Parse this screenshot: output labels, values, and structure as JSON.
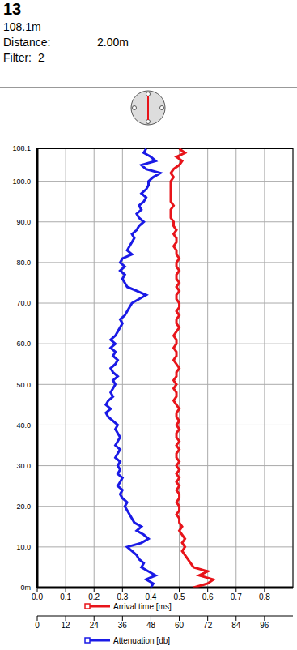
{
  "header": {
    "title": "13",
    "depth": "108.1m",
    "distance_label": "Distance:",
    "distance": "2.00m",
    "filter_label": "Filter:",
    "filter": "2"
  },
  "chart_data": {
    "type": "line",
    "grid": true,
    "depth": [
      0,
      1,
      2,
      3,
      4,
      5,
      6,
      7,
      8,
      9,
      10,
      11,
      12,
      13,
      14,
      15,
      16,
      17,
      18,
      19,
      20,
      21,
      22,
      23,
      24,
      25,
      26,
      27,
      28,
      29,
      30,
      31,
      32,
      33,
      34,
      35,
      36,
      37,
      38,
      39,
      40,
      41,
      42,
      43,
      44,
      45,
      46,
      47,
      48,
      49,
      50,
      51,
      52,
      53,
      54,
      55,
      56,
      57,
      58,
      59,
      60,
      61,
      62,
      63,
      64,
      65,
      66,
      67,
      68,
      69,
      70,
      71,
      72,
      73,
      74,
      75,
      76,
      77,
      78,
      79,
      80,
      81,
      82,
      83,
      84,
      85,
      86,
      87,
      88,
      89,
      90,
      91,
      92,
      93,
      94,
      95,
      96,
      97,
      98,
      99,
      100,
      101,
      102,
      103,
      104,
      105,
      106,
      107,
      108
    ],
    "ylim": [
      0,
      108.1
    ],
    "yticks": [
      {
        "value": 0,
        "label": "0m"
      },
      {
        "value": 10,
        "label": "10.0"
      },
      {
        "value": 20,
        "label": "20.0"
      },
      {
        "value": 30,
        "label": "30.0"
      },
      {
        "value": 40,
        "label": "40.0"
      },
      {
        "value": 50,
        "label": "50.0"
      },
      {
        "value": 60,
        "label": "60.0"
      },
      {
        "value": 70,
        "label": "70.0"
      },
      {
        "value": 80,
        "label": "80.0"
      },
      {
        "value": 90,
        "label": "90.0"
      },
      {
        "value": 100,
        "label": "100.0"
      },
      {
        "value": 108.1,
        "label": "108.1"
      }
    ],
    "xlim": [
      0,
      0.9
    ],
    "xticks": [
      {
        "value": 0,
        "label": "0.0"
      },
      0.1,
      0.2,
      0.3,
      0.4,
      0.5,
      0.6,
      0.7,
      0.8
    ],
    "x2lim": [
      0,
      108
    ],
    "x2ticks": [
      0,
      12,
      24,
      36,
      48,
      60,
      72,
      84,
      96
    ],
    "series": [
      {
        "name": "Arrival time [ms]",
        "color": "#e8141a",
        "axis": "x",
        "values": [
          0.55,
          0.6,
          0.62,
          0.57,
          0.6,
          0.55,
          0.54,
          0.53,
          0.52,
          0.51,
          0.52,
          0.51,
          0.52,
          0.51,
          0.5,
          0.51,
          0.5,
          0.5,
          0.49,
          0.5,
          0.5,
          0.49,
          0.5,
          0.5,
          0.49,
          0.5,
          0.49,
          0.5,
          0.49,
          0.5,
          0.49,
          0.5,
          0.49,
          0.49,
          0.5,
          0.49,
          0.5,
          0.49,
          0.49,
          0.5,
          0.49,
          0.5,
          0.49,
          0.49,
          0.5,
          0.49,
          0.48,
          0.49,
          0.49,
          0.48,
          0.49,
          0.48,
          0.49,
          0.49,
          0.5,
          0.49,
          0.48,
          0.49,
          0.49,
          0.48,
          0.49,
          0.49,
          0.48,
          0.49,
          0.5,
          0.49,
          0.49,
          0.5,
          0.49,
          0.5,
          0.5,
          0.49,
          0.49,
          0.5,
          0.49,
          0.5,
          0.49,
          0.49,
          0.5,
          0.49,
          0.49,
          0.5,
          0.49,
          0.49,
          0.48,
          0.49,
          0.49,
          0.48,
          0.49,
          0.48,
          0.48,
          0.47,
          0.47,
          0.47,
          0.48,
          0.47,
          0.47,
          0.47,
          0.47,
          0.47,
          0.47,
          0.48,
          0.47,
          0.48,
          0.5,
          0.51,
          0.49,
          0.52,
          0.5
        ]
      },
      {
        "name": "Attenuation [db]",
        "color": "#1a1ae6",
        "axis": "x2",
        "values": [
          48,
          49,
          46,
          50,
          47,
          44,
          45,
          43,
          42,
          40,
          38,
          44,
          47,
          45,
          42,
          44,
          41,
          40,
          39,
          38,
          37,
          38,
          36,
          35,
          36,
          34,
          35,
          36,
          34,
          35,
          34,
          35,
          33,
          34,
          35,
          33,
          34,
          35,
          34,
          33,
          34,
          32,
          30,
          29,
          31,
          29,
          30,
          32,
          31,
          32,
          33,
          32,
          34,
          32,
          31,
          33,
          34,
          32,
          33,
          31,
          33,
          31,
          33,
          34,
          35,
          36,
          35,
          37,
          38,
          39,
          40,
          43,
          46,
          42,
          38,
          37,
          36,
          37,
          35,
          37,
          35,
          36,
          40,
          38,
          39,
          40,
          41,
          40,
          42,
          43,
          45,
          43,
          42,
          44,
          43,
          45,
          46,
          44,
          46,
          47,
          47,
          49,
          52,
          46,
          44,
          50,
          48,
          45,
          46
        ]
      }
    ]
  }
}
